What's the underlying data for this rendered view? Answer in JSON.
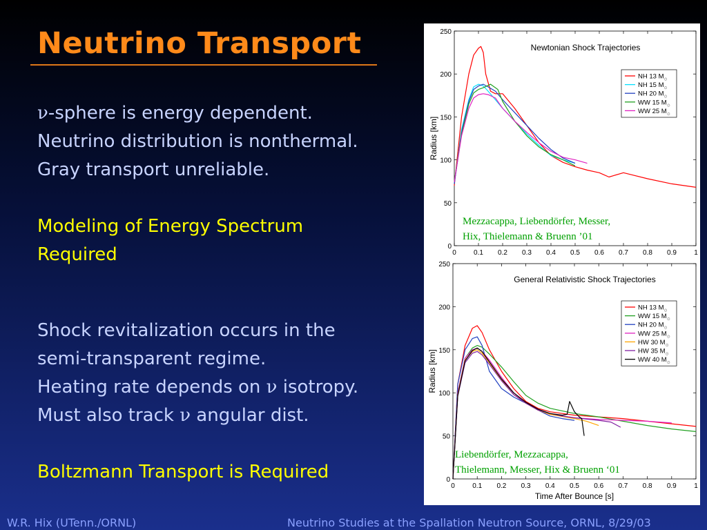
{
  "slide": {
    "title": "Neutrino Transport",
    "nu_symbol": "ν",
    "block1": {
      "line1_rest": "-sphere is energy dependent.",
      "line2": "Neutrino distribution is nonthermal.",
      "line3": "Gray transport unreliable."
    },
    "block2": {
      "line1": "Modeling of Energy Spectrum",
      "line2": "Required"
    },
    "block3": {
      "line1": "Shock revitalization occurs in the",
      "line2": "semi-transparent regime.",
      "line3_pre": "Heating rate depends on ",
      "line3_post": " isotropy.",
      "line4_pre": "Must also track ",
      "line4_post": " angular dist."
    },
    "block4": {
      "line1": "Boltzmann Transport is Required"
    },
    "footer_left": "W.R. Hix (UTenn./ORNL)",
    "footer_right": "Neutrino Studies at the Spallation Neutron Source, ORNL, 8/29/03"
  },
  "colors": {
    "title": "#ff8a1a",
    "body_text": "#c8d4ff",
    "highlight_text": "#ffff00",
    "credit_text": "#00a000",
    "footer_text": "#8aa0ff"
  },
  "chart_data": [
    {
      "type": "line",
      "title": "Newtonian Shock Trajectories",
      "xlabel": "",
      "ylabel": "Radius [km]",
      "xlim": [
        0,
        1
      ],
      "ylim": [
        0,
        250
      ],
      "xticks": [
        0,
        0.1,
        0.2,
        0.3,
        0.4,
        0.5,
        0.6,
        0.7,
        0.8,
        0.9,
        1
      ],
      "xtick_labels": [
        "0",
        "0.1",
        "0.2",
        "0.3",
        "0.4",
        "0.5",
        "0.6",
        "0.7",
        "0.8",
        "0.9",
        "1"
      ],
      "yticks": [
        0,
        50,
        100,
        150,
        200,
        250
      ],
      "legend_position": "top-right",
      "legend_suffix": "⊙",
      "credit": [
        "Mezzacappa, Liebendörfer, Messer,",
        "Hix, Thielemann & Bruenn ’01"
      ],
      "series": [
        {
          "name": "NH 13 M",
          "color": "#ff0000",
          "x": [
            0,
            0.03,
            0.06,
            0.08,
            0.1,
            0.11,
            0.12,
            0.13,
            0.15,
            0.17,
            0.2,
            0.25,
            0.3,
            0.35,
            0.4,
            0.45,
            0.5,
            0.55,
            0.6,
            0.64,
            0.7,
            0.8,
            0.9,
            1.0
          ],
          "y": [
            70,
            150,
            200,
            222,
            230,
            232,
            225,
            200,
            180,
            177,
            177,
            160,
            140,
            120,
            105,
            97,
            92,
            88,
            85,
            80,
            85,
            78,
            72,
            68
          ]
        },
        {
          "name": "NH 15 M",
          "color": "#00e0ff",
          "x": [
            0,
            0.03,
            0.06,
            0.08,
            0.1,
            0.12,
            0.14,
            0.17,
            0.2,
            0.25,
            0.3,
            0.35,
            0.4,
            0.45,
            0.5
          ],
          "y": [
            72,
            135,
            170,
            185,
            188,
            186,
            180,
            170,
            160,
            145,
            130,
            117,
            105,
            100,
            96
          ]
        },
        {
          "name": "NH 20 M",
          "color": "#2040c0",
          "x": [
            0,
            0.03,
            0.06,
            0.08,
            0.1,
            0.12,
            0.14,
            0.17,
            0.2,
            0.25,
            0.3,
            0.35,
            0.4,
            0.45,
            0.5
          ],
          "y": [
            72,
            132,
            168,
            182,
            186,
            188,
            185,
            180,
            170,
            155,
            140,
            125,
            112,
            102,
            96
          ]
        },
        {
          "name": "WW 15 M",
          "color": "#20a020",
          "x": [
            0,
            0.03,
            0.06,
            0.08,
            0.1,
            0.12,
            0.15,
            0.18,
            0.2,
            0.25,
            0.3,
            0.35,
            0.4,
            0.45,
            0.5
          ],
          "y": [
            75,
            130,
            165,
            178,
            182,
            184,
            188,
            182,
            168,
            145,
            128,
            115,
            106,
            100,
            93
          ]
        },
        {
          "name": "WW 25 M",
          "color": "#e020c0",
          "x": [
            0,
            0.03,
            0.06,
            0.08,
            0.1,
            0.12,
            0.14,
            0.17,
            0.2,
            0.25,
            0.3,
            0.35,
            0.4,
            0.45,
            0.5,
            0.55
          ],
          "y": [
            74,
            128,
            160,
            172,
            176,
            177,
            176,
            172,
            160,
            145,
            132,
            120,
            110,
            103,
            100,
            96
          ]
        }
      ]
    },
    {
      "type": "line",
      "title": "General Relativistic Shock Trajectories",
      "xlabel": "Time After Bounce [s]",
      "ylabel": "Radius [km]",
      "xlim": [
        0,
        1
      ],
      "ylim": [
        0,
        250
      ],
      "xticks": [
        0,
        0.1,
        0.2,
        0.3,
        0.4,
        0.5,
        0.6,
        0.7,
        0.8,
        0.9,
        1
      ],
      "xtick_labels": [
        "0",
        "0.1",
        "0.2",
        "0.3",
        "0.4",
        "0.5",
        "0.6",
        "0.7",
        "0.8",
        "0.9",
        "1"
      ],
      "yticks": [
        0,
        50,
        100,
        150,
        200,
        250
      ],
      "legend_position": "top-right",
      "legend_suffix": "⊙",
      "credit": [
        "Liebendörfer, Mezzacappa,",
        "Thielemann, Messer, Hix & Bruenn ‘01"
      ],
      "series": [
        {
          "name": "NH 13 M",
          "color": "#ff0000",
          "x": [
            0,
            0.02,
            0.05,
            0.08,
            0.1,
            0.12,
            0.15,
            0.2,
            0.25,
            0.3,
            0.35,
            0.4,
            0.5,
            0.6,
            0.7,
            0.8,
            0.9,
            1.0
          ],
          "y": [
            0,
            110,
            155,
            175,
            178,
            170,
            150,
            125,
            105,
            90,
            82,
            78,
            74,
            72,
            70,
            67,
            64,
            61
          ]
        },
        {
          "name": "WW 15 M",
          "color": "#20a020",
          "x": [
            0,
            0.02,
            0.05,
            0.08,
            0.1,
            0.12,
            0.15,
            0.2,
            0.25,
            0.3,
            0.35,
            0.4,
            0.5,
            0.6,
            0.7,
            0.8,
            0.9,
            1.0
          ],
          "y": [
            0,
            100,
            140,
            152,
            155,
            153,
            145,
            130,
            113,
            97,
            88,
            82,
            76,
            72,
            67,
            62,
            58,
            55
          ]
        },
        {
          "name": "NH 20 M",
          "color": "#2040c0",
          "x": [
            0,
            0.02,
            0.05,
            0.08,
            0.1,
            0.12,
            0.15,
            0.2,
            0.25,
            0.3,
            0.35,
            0.4,
            0.45,
            0.5
          ],
          "y": [
            0,
            110,
            150,
            163,
            165,
            155,
            125,
            105,
            95,
            88,
            80,
            73,
            70,
            68
          ]
        },
        {
          "name": "WW 25 M",
          "color": "#e020c0",
          "x": [
            0,
            0.02,
            0.05,
            0.08,
            0.1,
            0.12,
            0.15,
            0.2,
            0.25,
            0.3,
            0.35,
            0.4,
            0.5,
            0.6,
            0.7,
            0.8,
            0.85,
            0.9
          ],
          "y": [
            0,
            100,
            140,
            150,
            152,
            148,
            138,
            118,
            100,
            88,
            80,
            75,
            71,
            69,
            68,
            67,
            66,
            65
          ]
        },
        {
          "name": "HW 30 M",
          "color": "#ffa500",
          "x": [
            0,
            0.02,
            0.05,
            0.08,
            0.1,
            0.12,
            0.15,
            0.2,
            0.25,
            0.3,
            0.35,
            0.4,
            0.5,
            0.55,
            0.6
          ],
          "y": [
            0,
            98,
            138,
            148,
            150,
            146,
            135,
            115,
            98,
            88,
            80,
            75,
            70,
            67,
            62
          ]
        },
        {
          "name": "HW 35 M",
          "color": "#8020a0",
          "x": [
            0,
            0.02,
            0.05,
            0.08,
            0.1,
            0.12,
            0.15,
            0.2,
            0.25,
            0.3,
            0.35,
            0.4,
            0.45,
            0.5,
            0.6,
            0.65,
            0.69
          ],
          "y": [
            0,
            96,
            135,
            146,
            148,
            144,
            133,
            114,
            98,
            88,
            80,
            76,
            73,
            71,
            68,
            66,
            60
          ]
        },
        {
          "name": "WW 40 M",
          "color": "#000000",
          "x": [
            0,
            0.02,
            0.05,
            0.08,
            0.1,
            0.12,
            0.15,
            0.2,
            0.25,
            0.3,
            0.35,
            0.4,
            0.45,
            0.47,
            0.48,
            0.5,
            0.52,
            0.53,
            0.54
          ],
          "y": [
            0,
            97,
            137,
            149,
            152,
            148,
            136,
            116,
            100,
            89,
            81,
            76,
            74,
            75,
            90,
            78,
            72,
            70,
            50
          ]
        }
      ]
    }
  ]
}
